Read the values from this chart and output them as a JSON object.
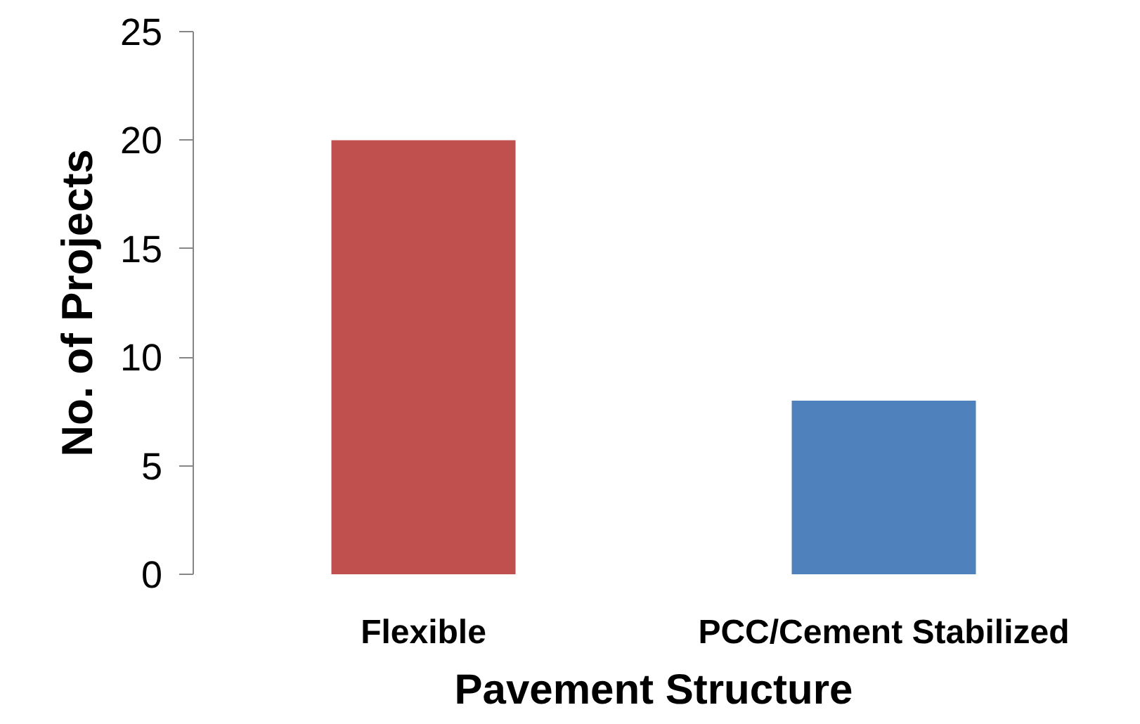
{
  "chart_data": {
    "type": "bar",
    "xlabel": "Pavement Structure",
    "ylabel": "No. of Projects",
    "categories": [
      "Flexible",
      "PCC/Cement Stabilized"
    ],
    "values": [
      20,
      8
    ],
    "colors": [
      "#c0504d",
      "#4f81bd"
    ],
    "ylim": [
      0,
      25
    ],
    "yticks": [
      0,
      5,
      10,
      15,
      20,
      25
    ],
    "grid": false
  }
}
